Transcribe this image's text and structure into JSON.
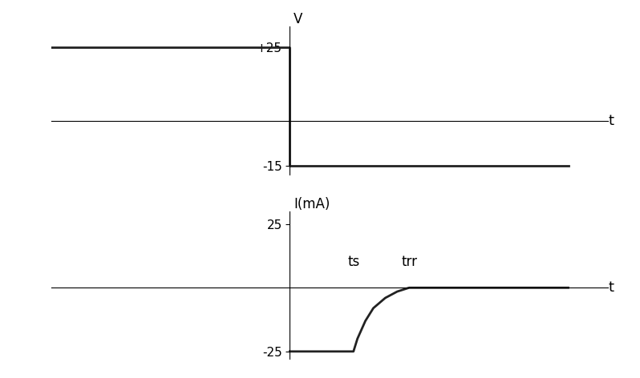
{
  "chart_data": [
    {
      "type": "line",
      "y_label": "V",
      "x_label": "t",
      "x": [
        -3,
        0,
        0,
        3.5
      ],
      "values": [
        25,
        25,
        -15,
        -15
      ],
      "xlim": [
        -3,
        4
      ],
      "ylim": [
        -18,
        32
      ],
      "yticks": [
        {
          "value": 25,
          "label": "+25"
        },
        -15
      ],
      "tick_labels": "y",
      "color": "#222222"
    },
    {
      "type": "line",
      "y_label": "I(mA)",
      "x_label": "t",
      "x": [
        0,
        0.8,
        0.85,
        0.95,
        1.05,
        1.2,
        1.35,
        1.5,
        3.5
      ],
      "values": [
        -25,
        -25,
        -20,
        -13,
        -8,
        -4,
        -1.5,
        0,
        0
      ],
      "xlim": [
        -3,
        4
      ],
      "ylim": [
        -28,
        30
      ],
      "yticks": [
        25,
        -25
      ],
      "annotations": [
        {
          "text": "ts",
          "x": 0.8,
          "y": 10
        },
        {
          "text": "trr",
          "x": 1.5,
          "y": 10
        }
      ],
      "tick_labels": "y",
      "color": "#222222"
    }
  ]
}
